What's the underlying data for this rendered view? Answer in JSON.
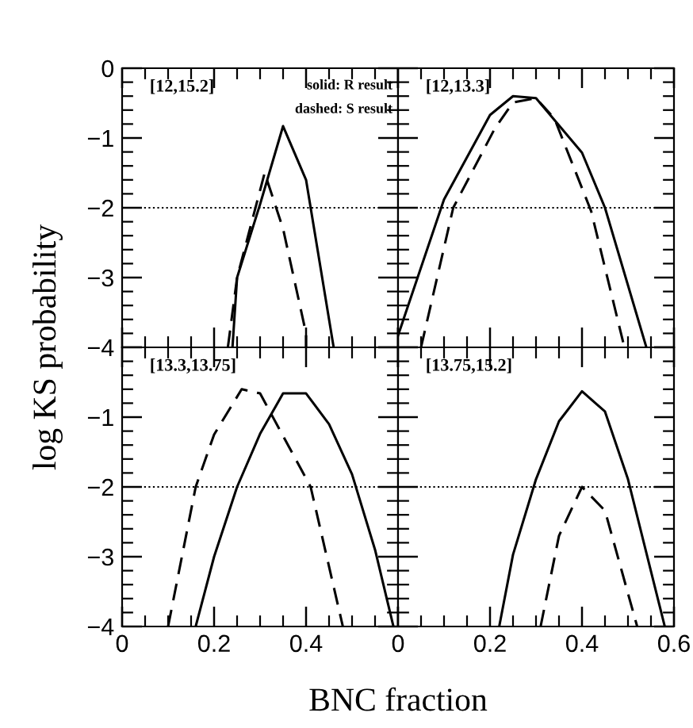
{
  "chart_data": [
    {
      "type": "line",
      "title": "[12,15.2]",
      "ylabel": "log KS probability",
      "annotations": [
        "solid: R result",
        "dashed: S result"
      ],
      "xlim": [
        0,
        0.6
      ],
      "ylim": [
        -4,
        0
      ],
      "xticks": [
        0,
        0.2,
        0.4,
        0.6
      ],
      "yticks": [
        0,
        -1,
        -2,
        -3,
        -4
      ],
      "tick_labels": "y",
      "ref_lines": [
        {
          "axis": "y",
          "value": -2,
          "line_style": "dotted"
        }
      ],
      "series": [
        {
          "color": "#000000",
          "line_style": "solid",
          "x": [
            0.24,
            0.25,
            0.3,
            0.35,
            0.4,
            0.46
          ],
          "values": [
            -4,
            -3.0,
            -1.95,
            -0.83,
            -1.6,
            -4
          ]
        },
        {
          "color": "#000000",
          "line_style": "dashed",
          "x": [
            0.23,
            0.25,
            0.31,
            0.35,
            0.4,
            0.4
          ],
          "values": [
            -4,
            -3.0,
            -1.5,
            -2.3,
            -3.8,
            -4
          ]
        }
      ]
    },
    {
      "type": "line",
      "title": "[12,13.3]",
      "xlim": [
        0,
        0.6
      ],
      "ylim": [
        -4,
        0
      ],
      "xticks": [
        0,
        0.2,
        0.4,
        0.6
      ],
      "yticks": [
        0,
        -1,
        -2,
        -3,
        -4
      ],
      "tick_labels": false,
      "ref_lines": [
        {
          "axis": "y",
          "value": -2,
          "line_style": "dotted"
        }
      ],
      "series": [
        {
          "color": "#000000",
          "line_style": "solid",
          "x": [
            0.0,
            0.1,
            0.2,
            0.25,
            0.3,
            0.4,
            0.45,
            0.54
          ],
          "values": [
            -3.83,
            -1.88,
            -0.67,
            -0.4,
            -0.43,
            -1.21,
            -2.0,
            -4
          ]
        },
        {
          "color": "#000000",
          "line_style": "dashed",
          "x": [
            0.05,
            0.12,
            0.21,
            0.25,
            0.3,
            0.34,
            0.42,
            0.49
          ],
          "values": [
            -4,
            -2.0,
            -0.87,
            -0.49,
            -0.43,
            -0.72,
            -2.05,
            -3.94
          ]
        }
      ]
    },
    {
      "type": "line",
      "title": "[13.3,13.75]",
      "xlabel": "BNC fraction",
      "xlim": [
        0,
        0.6
      ],
      "ylim": [
        -4,
        0
      ],
      "xticks": [
        0,
        0.2,
        0.4,
        {
          "value": 0.6,
          "label": null
        }
      ],
      "yticks": [
        {
          "value": 0,
          "label": null
        },
        -1,
        -2,
        -3,
        -4
      ],
      "ref_lines": [
        {
          "axis": "y",
          "value": -2,
          "line_style": "dotted"
        }
      ],
      "series": [
        {
          "color": "#000000",
          "line_style": "solid",
          "x": [
            0.16,
            0.2,
            0.25,
            0.3,
            0.35,
            0.4,
            0.45,
            0.5,
            0.55,
            0.59
          ],
          "values": [
            -4,
            -3.0,
            -2.0,
            -1.24,
            -0.66,
            -0.66,
            -1.1,
            -1.82,
            -2.9,
            -4
          ]
        },
        {
          "color": "#000000",
          "line_style": "dashed",
          "x": [
            0.1,
            0.16,
            0.2,
            0.26,
            0.3,
            0.41,
            0.48
          ],
          "values": [
            -4,
            -2.0,
            -1.25,
            -0.6,
            -0.66,
            -2.0,
            -4
          ]
        }
      ]
    },
    {
      "type": "line",
      "title": "[13.75,15.2]",
      "xlim": [
        0,
        0.6
      ],
      "ylim": [
        -4,
        0
      ],
      "xticks": [
        0,
        0.2,
        0.4,
        0.6
      ],
      "yticks": [
        {
          "value": 0,
          "label": null
        },
        -1,
        -2,
        -3,
        -4
      ],
      "tick_labels": "x",
      "ref_lines": [
        {
          "axis": "y",
          "value": -2,
          "line_style": "dotted"
        }
      ],
      "series": [
        {
          "color": "#000000",
          "line_style": "solid",
          "x": [
            0.22,
            0.25,
            0.3,
            0.35,
            0.4,
            0.45,
            0.5,
            0.58
          ],
          "values": [
            -4,
            -2.97,
            -1.89,
            -1.06,
            -0.63,
            -0.92,
            -1.89,
            -4
          ]
        },
        {
          "color": "#000000",
          "line_style": "dashed",
          "x": [
            0.31,
            0.35,
            0.4,
            0.45,
            0.52
          ],
          "values": [
            -4,
            -2.7,
            -2.0,
            -2.34,
            -4
          ]
        }
      ]
    }
  ]
}
